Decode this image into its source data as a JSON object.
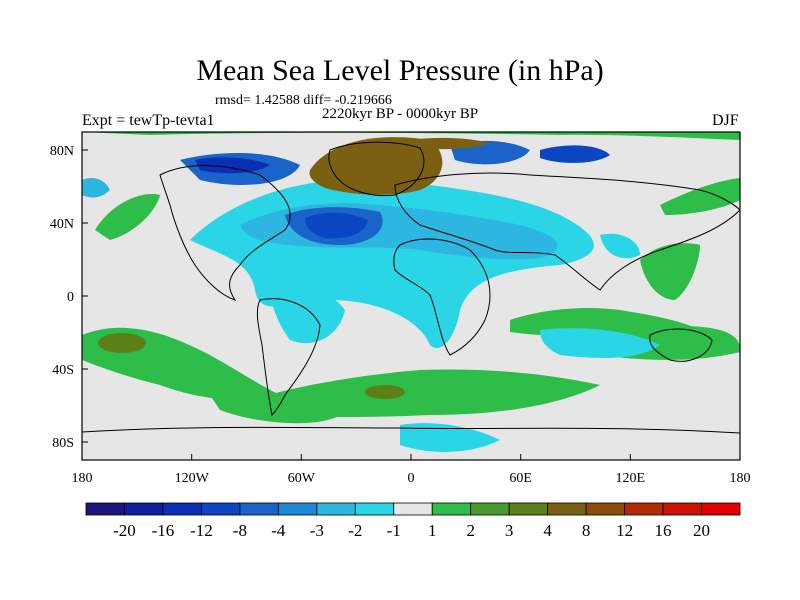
{
  "title": "Mean Sea Level Pressure (in hPa)",
  "stats": "rmsd= 1.42588 diff= -0.219666",
  "period": "2220kyr BP - 0000kyr BP",
  "experiment": "Expt = tewTp-tevta1",
  "season": "DJF",
  "lat_labels": [
    "80N",
    "40N",
    "0",
    "40S",
    "80S"
  ],
  "lon_labels": [
    "180",
    "120W",
    "60W",
    "0",
    "60E",
    "120E",
    "180"
  ],
  "colorbar": {
    "labels": [
      "-20",
      "-16",
      "-12",
      "-8",
      "-4",
      "-3",
      "-2",
      "-1",
      "1",
      "2",
      "3",
      "4",
      "8",
      "12",
      "16",
      "20"
    ],
    "colors": [
      "#1c1478",
      "#0f1e9c",
      "#0a2fb5",
      "#0a46c2",
      "#1a63c9",
      "#1f88d4",
      "#2db6e0",
      "#2ad6e6",
      "#e6e6e6",
      "#2ebd48",
      "#4a9a2c",
      "#5c8018",
      "#7a6010",
      "#8f4a08",
      "#b02a04",
      "#cc1200",
      "#e00000"
    ]
  }
}
